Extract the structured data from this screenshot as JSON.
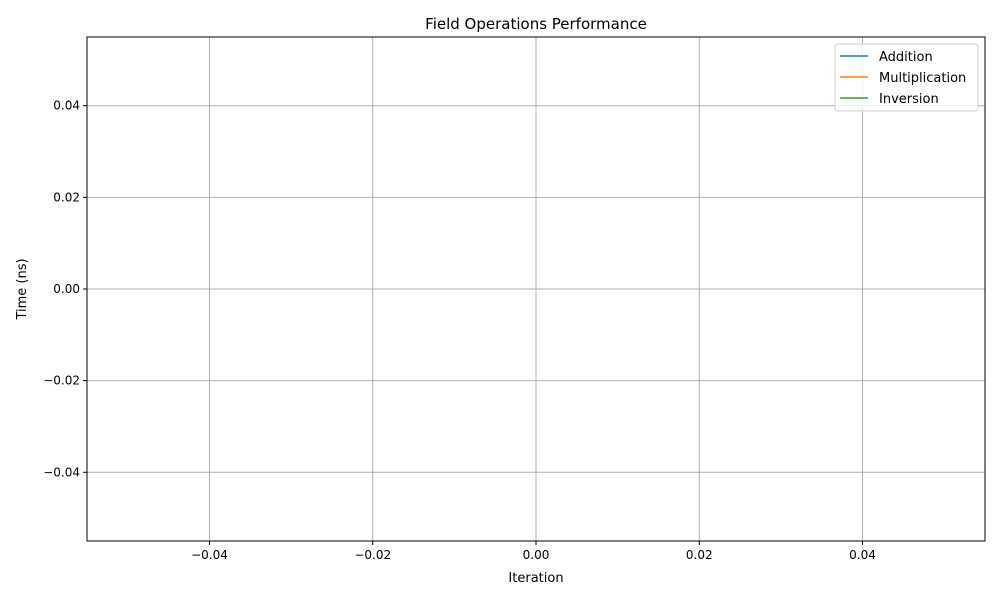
{
  "chart_data": {
    "type": "line",
    "title": "Field Operations Performance",
    "xlabel": "Iteration",
    "ylabel": "Time (ns)",
    "xlim": [
      -0.055,
      0.055
    ],
    "ylim": [
      -0.055,
      0.055
    ],
    "xticks": [
      -0.04,
      -0.02,
      0.0,
      0.02,
      0.04
    ],
    "xtick_labels": [
      "−0.04",
      "−0.02",
      "0.00",
      "0.02",
      "0.04"
    ],
    "yticks": [
      -0.04,
      -0.02,
      0.0,
      0.02,
      0.04
    ],
    "ytick_labels": [
      "−0.04",
      "−0.02",
      "0.00",
      "0.02",
      "0.04"
    ],
    "grid": true,
    "legend_position": "top-right",
    "series": [
      {
        "name": "Addition",
        "color": "#1f77b4",
        "x": [],
        "y": []
      },
      {
        "name": "Multiplication",
        "color": "#ff7f0e",
        "x": [],
        "y": []
      },
      {
        "name": "Inversion",
        "color": "#2ca02c",
        "x": [],
        "y": []
      }
    ]
  }
}
